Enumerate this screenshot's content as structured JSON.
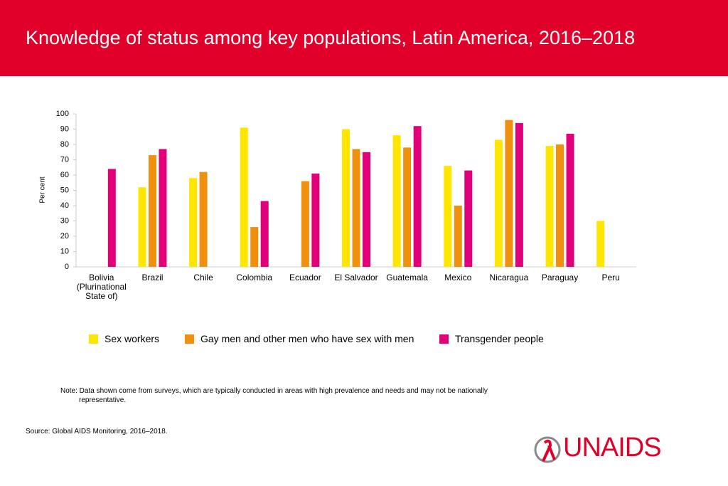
{
  "chart_data": {
    "type": "bar",
    "title": "Knowledge of status among key populations, Latin America, 2016–2018",
    "y_label": "Per cent",
    "categories": [
      "Bolivia (Plurinational State of)",
      "Brazil",
      "Chile",
      "Colombia",
      "Ecuador",
      "El Salvador",
      "Guatemala",
      "Mexico",
      "Nicaragua",
      "Paraguay",
      "Peru"
    ],
    "series": [
      {
        "name": "Sex workers",
        "color": "#ffe600",
        "values": [
          null,
          52,
          58,
          91,
          null,
          90,
          86,
          66,
          83,
          79,
          30
        ]
      },
      {
        "name": "Gay men and other men who have sex with men",
        "color": "#f0900f",
        "values": [
          null,
          73,
          62,
          26,
          56,
          77,
          78,
          40,
          96,
          80,
          null
        ]
      },
      {
        "name": "Transgender people",
        "color": "#e2007a",
        "values": [
          64,
          77,
          null,
          43,
          61,
          75,
          92,
          63,
          94,
          87,
          null
        ]
      }
    ],
    "ylim": [
      0,
      100
    ],
    "yticks": [
      0,
      10,
      20,
      30,
      40,
      50,
      60,
      70,
      80,
      90,
      100
    ],
    "grid": false,
    "note": "Note: Data shown come from surveys, which are typically conducted in areas with high prevalence and needs and may not be nationally representative.",
    "source": "Source: Global AIDS Monitoring, 2016–2018.",
    "logo": "UNAIDS"
  }
}
